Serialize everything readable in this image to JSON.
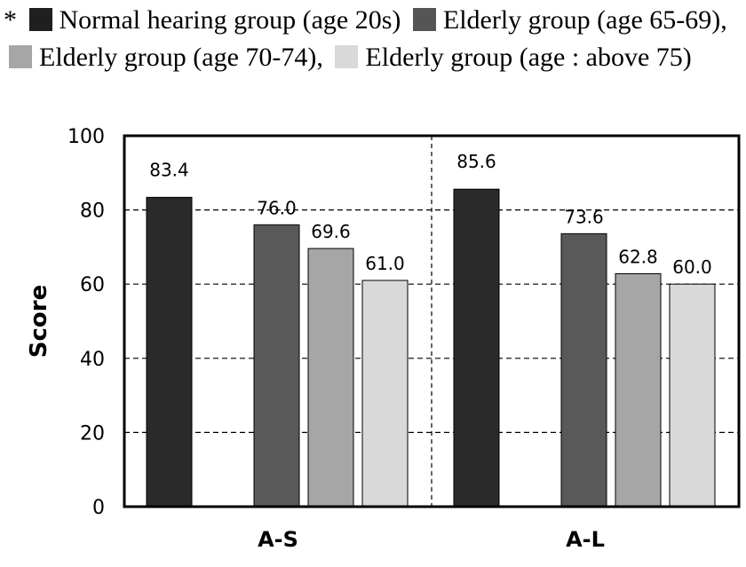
{
  "legend": {
    "marker": "*",
    "items": [
      {
        "label": "Normal hearing group (age 20s)",
        "color": "#1f1f1f"
      },
      {
        "label": "Elderly group (age 65-69),",
        "color": "#555555"
      },
      {
        "label": "Elderly group (age 70-74),",
        "color": "#a6a6a6"
      },
      {
        "label": "Elderly group (age : above 75)",
        "color": "#d9d9d9"
      }
    ]
  },
  "chart_data": {
    "type": "bar",
    "categories": [
      "A-S",
      "A-L"
    ],
    "series": [
      {
        "name": "Normal hearing group (age 20s)",
        "values": [
          83.4,
          85.6
        ],
        "color": "#2a2a2a"
      },
      {
        "name": "Elderly group (age 65-69)",
        "values": [
          76.0,
          73.6
        ],
        "color": "#595959"
      },
      {
        "name": "Elderly group (age 70-74)",
        "values": [
          69.6,
          62.8
        ],
        "color": "#a6a6a6"
      },
      {
        "name": "Elderly group (age : above 75)",
        "values": [
          61.0,
          60.0
        ],
        "color": "#d9d9d9"
      }
    ],
    "data_labels": [
      [
        "83.4",
        "76.0",
        "69.6",
        "61.0"
      ],
      [
        "85.6",
        "73.6",
        "62.8",
        "60.0"
      ]
    ],
    "yticks": [
      "0",
      "20",
      "40",
      "60",
      "80",
      "100"
    ],
    "ylabel": "Score",
    "xlabel": "",
    "ylim": [
      0,
      100
    ],
    "grid": "dashed horizontal",
    "legend_position": "top"
  }
}
